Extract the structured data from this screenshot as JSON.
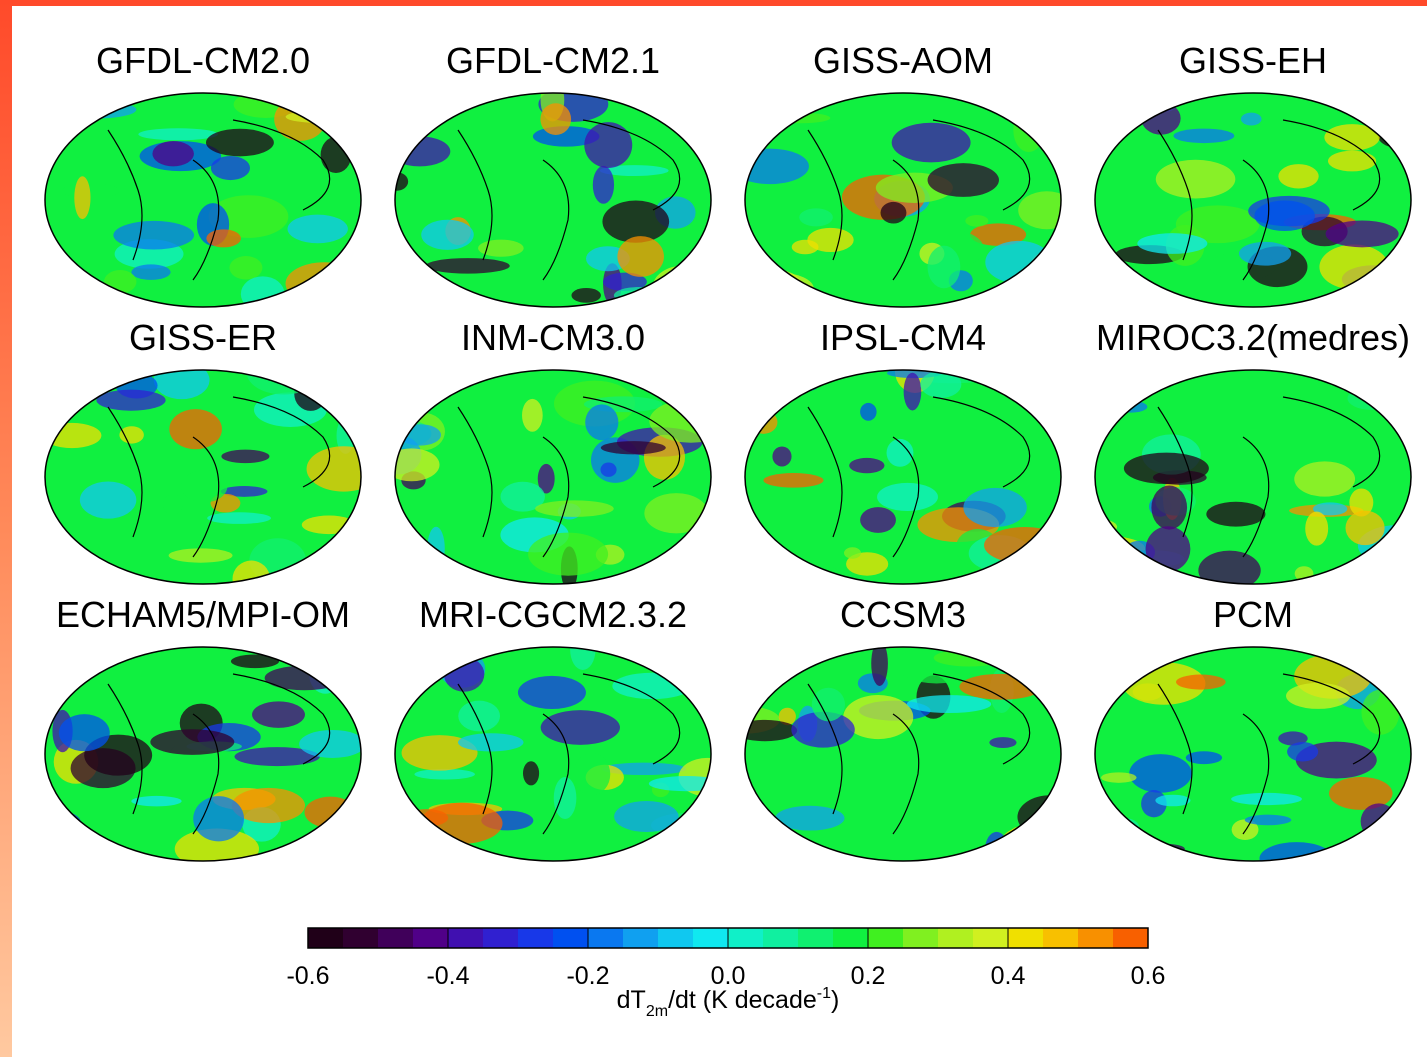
{
  "panels": [
    {
      "title": "GFDL-CM2.0"
    },
    {
      "title": "GFDL-CM2.1"
    },
    {
      "title": "GISS-AOM"
    },
    {
      "title": "GISS-EH"
    },
    {
      "title": "GISS-ER"
    },
    {
      "title": "INM-CM3.0"
    },
    {
      "title": "IPSL-CM4"
    },
    {
      "title": "MIROC3.2(medres)"
    },
    {
      "title": "ECHAM5/MPI-OM"
    },
    {
      "title": "MRI-CGCM2.3.2"
    },
    {
      "title": "CCSM3"
    },
    {
      "title": "PCM"
    }
  ],
  "colorbar": {
    "lim": [
      -0.6,
      0.6
    ],
    "ticks": [
      -0.6,
      -0.4,
      -0.2,
      {
        "value": 0,
        "label": "0.0"
      },
      0.2,
      0.4,
      0.6
    ],
    "colors": [
      "#200018",
      "#300030",
      "#40005a",
      "#500088",
      "#4010b0",
      "#3020d0",
      "#1838e8",
      "#0050f0",
      "#0a78f0",
      "#10a0f0",
      "#10c8f0",
      "#10e8f0",
      "#10f0c8",
      "#10f0a0",
      "#10f070",
      "#10f040",
      "#40f020",
      "#80f020",
      "#b0f020",
      "#d0f020",
      "#f0e000",
      "#f8c000",
      "#f89000",
      "#f86000"
    ],
    "label_parts": [
      "dT",
      "2m",
      "/dt (K decade",
      "-1",
      ")"
    ]
  }
}
